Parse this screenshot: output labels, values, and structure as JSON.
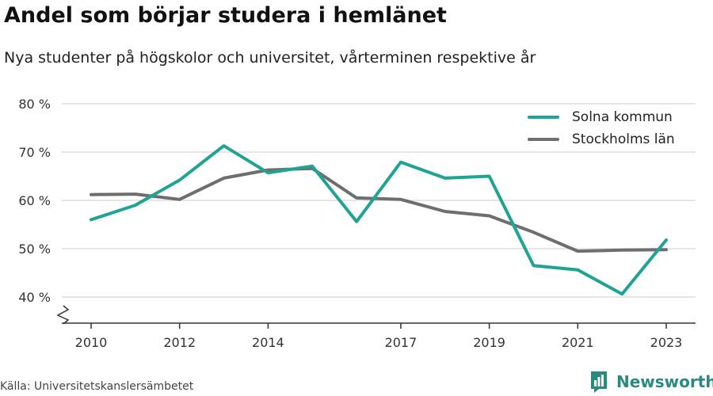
{
  "header": {
    "title": "Andel som börjar studera i hemlänet",
    "subtitle": "Nya studenter på högskolor och universitet, vårterminen respektive år"
  },
  "footer": {
    "source": "Källa: Universitetskanslersämbetet",
    "brand": "Newsworthy"
  },
  "colors": {
    "solna": "#1fa394",
    "stockholm": "#6d6e71",
    "grid": "#dddddd",
    "axis": "#333333",
    "brand": "#2a8a7f"
  },
  "chart_data": {
    "type": "line",
    "x": [
      2010,
      2011,
      2012,
      2013,
      2014,
      2015,
      2016,
      2017,
      2018,
      2019,
      2020,
      2021,
      2022,
      2023
    ],
    "series": [
      {
        "name": "Solna kommun",
        "color": "#1fa394",
        "values": [
          56.0,
          59.0,
          64.2,
          71.3,
          65.7,
          67.1,
          55.6,
          67.9,
          64.6,
          65.0,
          46.5,
          45.6,
          40.6,
          51.8
        ]
      },
      {
        "name": "Stockholms län",
        "color": "#6d6e71",
        "values": [
          61.2,
          61.3,
          60.2,
          64.6,
          66.3,
          66.6,
          60.5,
          60.2,
          57.7,
          56.8,
          53.4,
          49.5,
          49.7,
          49.8
        ]
      }
    ],
    "x_ticks": [
      "2010",
      "2012",
      "2014",
      "2017",
      "2019",
      "2021",
      "2023"
    ],
    "y_ticks": [
      "40 %",
      "50 %",
      "60 %",
      "70 %",
      "80 %"
    ],
    "ylim": [
      35,
      80
    ],
    "grid": true,
    "legend_position": "top-right",
    "axis_break": true
  }
}
